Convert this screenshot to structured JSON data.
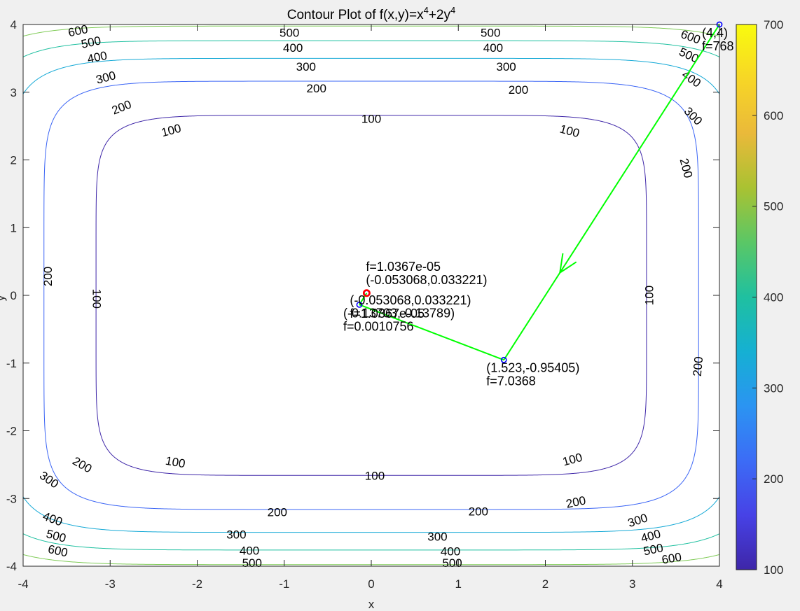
{
  "chart_data": {
    "type": "contour",
    "title": "Contour Plot of f(x,y)=x",
    "title_sup1": "4",
    "title_mid": "+2y",
    "title_sup2": "4",
    "xlabel": "x",
    "ylabel": "y",
    "xlim": [
      -4,
      4
    ],
    "ylim": [
      -4,
      4
    ],
    "xticks": [
      "-4",
      "-3",
      "-2",
      "-1",
      "0",
      "1",
      "2",
      "3",
      "4"
    ],
    "yticks": [
      "-4",
      "-3",
      "-2",
      "-1",
      "0",
      "1",
      "2",
      "3",
      "4"
    ],
    "contour_levels": [
      100,
      200,
      300,
      400,
      500,
      600,
      700
    ],
    "colorbar_ticks": [
      "100",
      "200",
      "300",
      "400",
      "500",
      "600",
      "700"
    ],
    "colorbar_range": [
      100,
      700
    ],
    "colors": {
      "100": "#3e26a8",
      "200": "#3a64f5",
      "300": "#15a9d6",
      "400": "#1fc0a0",
      "500": "#7fcb56",
      "600": "#f5b93a",
      "700": "#f9fb0e"
    },
    "contour_labels": [
      {
        "text": "600",
        "x": -3.37,
        "y": 3.91,
        "rot": -12
      },
      {
        "text": "500",
        "x": -3.22,
        "y": 3.74,
        "rot": -12
      },
      {
        "text": "400",
        "x": -3.15,
        "y": 3.52,
        "rot": -12
      },
      {
        "text": "300",
        "x": -3.05,
        "y": 3.22,
        "rot": -15
      },
      {
        "text": "200",
        "x": -2.87,
        "y": 2.78,
        "rot": -22
      },
      {
        "text": "100",
        "x": -2.3,
        "y": 2.44,
        "rot": -15
      },
      {
        "text": "500",
        "x": -0.94,
        "y": 3.88,
        "rot": 0
      },
      {
        "text": "400",
        "x": -0.9,
        "y": 3.66,
        "rot": 0
      },
      {
        "text": "300",
        "x": -0.75,
        "y": 3.38,
        "rot": 0
      },
      {
        "text": "200",
        "x": -0.63,
        "y": 3.06,
        "rot": 0
      },
      {
        "text": "100",
        "x": 0.0,
        "y": 2.61,
        "rot": 0
      },
      {
        "text": "500",
        "x": 1.37,
        "y": 3.88,
        "rot": 0
      },
      {
        "text": "400",
        "x": 1.4,
        "y": 3.66,
        "rot": 0
      },
      {
        "text": "300",
        "x": 1.55,
        "y": 3.38,
        "rot": 0
      },
      {
        "text": "200",
        "x": 1.69,
        "y": 3.04,
        "rot": 0
      },
      {
        "text": "100",
        "x": 2.28,
        "y": 2.43,
        "rot": 15
      },
      {
        "text": "600",
        "x": 3.67,
        "y": 3.82,
        "rot": 20
      },
      {
        "text": "500",
        "x": 3.65,
        "y": 3.55,
        "rot": 25
      },
      {
        "text": "400",
        "x": 3.68,
        "y": 3.2,
        "rot": 35
      },
      {
        "text": "300",
        "x": 3.7,
        "y": 2.65,
        "rot": 45
      },
      {
        "text": "200",
        "x": 3.62,
        "y": 1.88,
        "rot": 75
      },
      {
        "text": "200",
        "x": -3.72,
        "y": 0.28,
        "rot": -90
      },
      {
        "text": "100",
        "x": -3.15,
        "y": -0.05,
        "rot": 90
      },
      {
        "text": "100",
        "x": 3.19,
        "y": 0.0,
        "rot": -90
      },
      {
        "text": "200",
        "x": 3.75,
        "y": -1.05,
        "rot": -85
      },
      {
        "text": "200",
        "x": -3.32,
        "y": -2.5,
        "rot": 30
      },
      {
        "text": "300",
        "x": -3.7,
        "y": -2.72,
        "rot": 35
      },
      {
        "text": "100",
        "x": -2.25,
        "y": -2.46,
        "rot": 10
      },
      {
        "text": "100",
        "x": 0.04,
        "y": -2.66,
        "rot": 0
      },
      {
        "text": "100",
        "x": 2.31,
        "y": -2.42,
        "rot": -15
      },
      {
        "text": "200",
        "x": -1.08,
        "y": -3.2,
        "rot": 0
      },
      {
        "text": "200",
        "x": 1.23,
        "y": -3.19,
        "rot": 0
      },
      {
        "text": "200",
        "x": 2.35,
        "y": -3.05,
        "rot": -12
      },
      {
        "text": "300",
        "x": -1.55,
        "y": -3.53,
        "rot": 0
      },
      {
        "text": "300",
        "x": 0.76,
        "y": -3.56,
        "rot": 0
      },
      {
        "text": "300",
        "x": 3.06,
        "y": -3.32,
        "rot": -18
      },
      {
        "text": "400",
        "x": -3.66,
        "y": -3.3,
        "rot": 20
      },
      {
        "text": "400",
        "x": -1.4,
        "y": -3.77,
        "rot": 0
      },
      {
        "text": "400",
        "x": 0.91,
        "y": -3.78,
        "rot": 0
      },
      {
        "text": "400",
        "x": 3.21,
        "y": -3.55,
        "rot": -15
      },
      {
        "text": "500",
        "x": -3.62,
        "y": -3.55,
        "rot": 15
      },
      {
        "text": "500",
        "x": -1.37,
        "y": -3.95,
        "rot": 0
      },
      {
        "text": "500",
        "x": 0.93,
        "y": -3.95,
        "rot": 0
      },
      {
        "text": "500",
        "x": 3.24,
        "y": -3.75,
        "rot": -12
      },
      {
        "text": "600",
        "x": -3.6,
        "y": -3.77,
        "rot": 12
      },
      {
        "text": "600",
        "x": 3.45,
        "y": -3.88,
        "rot": -10
      }
    ],
    "path_points": [
      {
        "x": 4,
        "y": 4,
        "label1": "(4,4)",
        "label2": "f=768"
      },
      {
        "x": 1.523,
        "y": -0.95405,
        "label1": "(1.523,-0.95405)",
        "label2": "f=7.0368"
      },
      {
        "x": -0.13703,
        "y": -0.13789,
        "label1": "(-0.13703,-0.13789)",
        "label2": "f=0.0010756"
      },
      {
        "x": -0.053068,
        "y": 0.033221,
        "label1": "(-0.053068,0.033221)",
        "label2": "f=1.0367e-05"
      }
    ],
    "minimum_marker": {
      "x": -0.053068,
      "y": 0.033221,
      "label1": "f=1.0367e-05",
      "label2": "(-0.053068,0.033221)"
    },
    "path_color": "#00ff00",
    "point_color": "#0000ff",
    "min_color": "#ff0000"
  }
}
